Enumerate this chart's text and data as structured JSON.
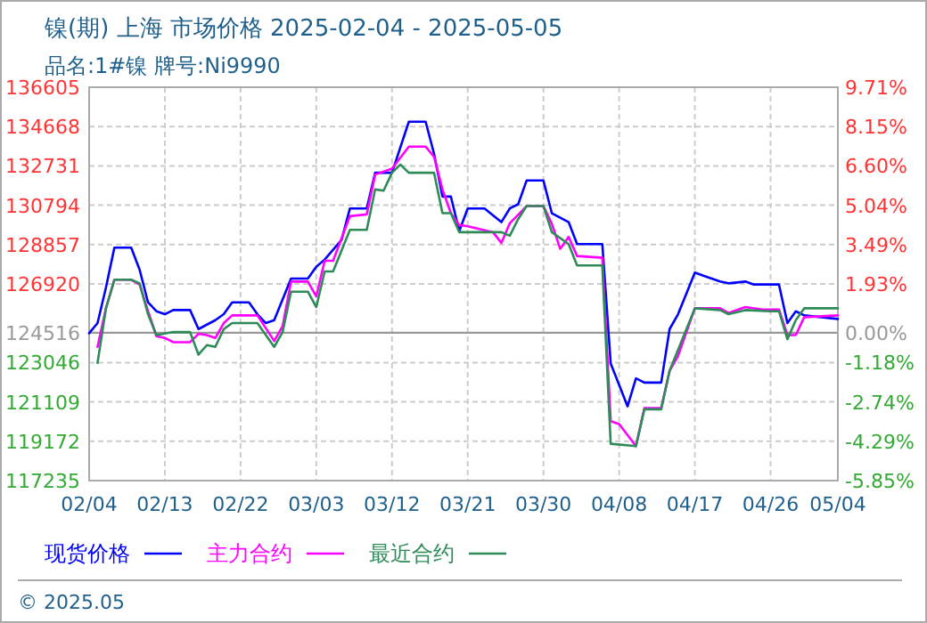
{
  "chart_data": {
    "type": "line",
    "title": "镍(期) 上海 市场价格 2025-02-04 - 2025-05-05",
    "subtitle": "品名:1#镍 牌号:Ni9990",
    "xlim": [
      "2025-02-04",
      "2025-05-04"
    ],
    "xticks": [
      {
        "value": "2025-02-04",
        "label": "02/04"
      },
      {
        "value": "2025-02-13",
        "label": "02/13"
      },
      {
        "value": "2025-02-22",
        "label": "02/22"
      },
      {
        "value": "2025-03-03",
        "label": "03/03"
      },
      {
        "value": "2025-03-12",
        "label": "03/12"
      },
      {
        "value": "2025-03-21",
        "label": "03/21"
      },
      {
        "value": "2025-03-30",
        "label": "03/30"
      },
      {
        "value": "2025-04-08",
        "label": "04/08"
      },
      {
        "value": "2025-04-17",
        "label": "04/17"
      },
      {
        "value": "2025-04-26",
        "label": "04/26"
      },
      {
        "value": "2025-05-04",
        "label": "05/04"
      }
    ],
    "ylim": [
      117235,
      136605
    ],
    "yticks": [
      117235,
      119172,
      121109,
      123046,
      126920,
      128857,
      130794,
      132731,
      134668,
      136605
    ],
    "y2lim": [
      -5.85,
      9.71
    ],
    "y2ticks": [
      {
        "value": -5.85,
        "label": "-5.85%"
      },
      {
        "value": -4.29,
        "label": "-4.29%"
      },
      {
        "value": -2.74,
        "label": "-2.74%"
      },
      {
        "value": -1.18,
        "label": "-1.18%"
      },
      {
        "value": 0,
        "label": "0.00%"
      },
      {
        "value": 1.93,
        "label": "1.93%"
      },
      {
        "value": 3.49,
        "label": "3.49%"
      },
      {
        "value": 5.04,
        "label": "5.04%"
      },
      {
        "value": 6.6,
        "label": "6.60%"
      },
      {
        "value": 8.15,
        "label": "8.15%"
      },
      {
        "value": 9.71,
        "label": "9.71%"
      }
    ],
    "ref_lines": [
      {
        "axis": "y",
        "value": 124516,
        "label": "124516",
        "color": "#999999"
      }
    ],
    "grid": true,
    "legend": "bottom",
    "line_style": "solid",
    "series": [
      {
        "name": "现货价格",
        "color": "#0000ff",
        "x": [
          "2025-02-04",
          "2025-02-05",
          "2025-02-06",
          "2025-02-07",
          "2025-02-09",
          "2025-02-10",
          "2025-02-11",
          "2025-02-12",
          "2025-02-13",
          "2025-02-14",
          "2025-02-16",
          "2025-02-17",
          "2025-02-19",
          "2025-02-20",
          "2025-02-21",
          "2025-02-23",
          "2025-02-24",
          "2025-02-25",
          "2025-02-26",
          "2025-02-28",
          "2025-03-02",
          "2025-03-03",
          "2025-03-04",
          "2025-03-06",
          "2025-03-07",
          "2025-03-09",
          "2025-03-10",
          "2025-03-12",
          "2025-03-14",
          "2025-03-16",
          "2025-03-17",
          "2025-03-18",
          "2025-03-19",
          "2025-03-20",
          "2025-03-21",
          "2025-03-23",
          "2025-03-25",
          "2025-03-26",
          "2025-03-27",
          "2025-03-28",
          "2025-03-30",
          "2025-03-31",
          "2025-04-02",
          "2025-04-03",
          "2025-04-06",
          "2025-04-07",
          "2025-04-09",
          "2025-04-10",
          "2025-04-11",
          "2025-04-13",
          "2025-04-14",
          "2025-04-15",
          "2025-04-16",
          "2025-04-17",
          "2025-04-18",
          "2025-04-20",
          "2025-04-21",
          "2025-04-23",
          "2025-04-24",
          "2025-04-27",
          "2025-04-28",
          "2025-04-29",
          "2025-04-30",
          "2025-05-04"
        ],
        "values": [
          124491,
          124990,
          126745,
          128705,
          128705,
          127622,
          126013,
          125574,
          125428,
          125633,
          125633,
          124696,
          125135,
          125428,
          126013,
          126013,
          125428,
          124990,
          125135,
          127183,
          127183,
          127768,
          128120,
          129085,
          130636,
          130636,
          132392,
          132392,
          134908,
          134908,
          133328,
          131221,
          131221,
          129524,
          130636,
          130636,
          129963,
          130636,
          130841,
          132011,
          132011,
          130402,
          129963,
          128880,
          128880,
          123000,
          120891,
          122267,
          122062,
          122062,
          124696,
          125428,
          126452,
          127476,
          127329,
          127037,
          126949,
          127037,
          126891,
          126891,
          124990,
          125574,
          125369,
          125194
        ]
      },
      {
        "name": "主力合约",
        "color": "#ff00ff",
        "x": [
          "2025-02-05",
          "2025-02-06",
          "2025-02-07",
          "2025-02-09",
          "2025-02-10",
          "2025-02-11",
          "2025-02-12",
          "2025-02-13",
          "2025-02-14",
          "2025-02-16",
          "2025-02-17",
          "2025-02-18",
          "2025-02-19",
          "2025-02-20",
          "2025-02-21",
          "2025-02-24",
          "2025-02-26",
          "2025-02-27",
          "2025-02-28",
          "2025-03-02",
          "2025-03-03",
          "2025-03-04",
          "2025-03-05",
          "2025-03-07",
          "2025-03-09",
          "2025-03-10",
          "2025-03-12",
          "2025-03-14",
          "2025-03-16",
          "2025-03-17",
          "2025-03-18",
          "2025-03-19",
          "2025-03-20",
          "2025-03-21",
          "2025-03-24",
          "2025-03-25",
          "2025-03-26",
          "2025-03-28",
          "2025-03-30",
          "2025-03-31",
          "2025-04-01",
          "2025-04-02",
          "2025-04-03",
          "2025-04-06",
          "2025-04-07",
          "2025-04-08",
          "2025-04-10",
          "2025-04-11",
          "2025-04-13",
          "2025-04-14",
          "2025-04-15",
          "2025-04-17",
          "2025-04-20",
          "2025-04-21",
          "2025-04-23",
          "2025-04-25",
          "2025-04-27",
          "2025-04-28",
          "2025-04-29",
          "2025-04-30",
          "2025-05-04"
        ],
        "values": [
          123819,
          125720,
          127125,
          127125,
          126891,
          125574,
          124345,
          124257,
          124052,
          124052,
          124462,
          124403,
          124257,
          124990,
          125369,
          125369,
          124111,
          124843,
          127037,
          127037,
          126305,
          128061,
          128061,
          130256,
          130344,
          132304,
          132596,
          133679,
          133679,
          133181,
          131572,
          130402,
          129817,
          129758,
          129466,
          128939,
          129905,
          130753,
          130753,
          129875,
          128646,
          129232,
          128295,
          128207,
          120160,
          120014,
          118931,
          120804,
          120804,
          122647,
          123379,
          125720,
          125720,
          125486,
          125779,
          125662,
          125662,
          124403,
          124403,
          125281,
          125369
        ]
      },
      {
        "name": "最近合约",
        "color": "#2e8b57",
        "x": [
          "2025-02-05",
          "2025-02-06",
          "2025-02-07",
          "2025-02-09",
          "2025-02-10",
          "2025-02-11",
          "2025-02-12",
          "2025-02-14",
          "2025-02-16",
          "2025-02-17",
          "2025-02-18",
          "2025-02-19",
          "2025-02-20",
          "2025-02-21",
          "2025-02-24",
          "2025-02-26",
          "2025-02-27",
          "2025-02-28",
          "2025-03-02",
          "2025-03-03",
          "2025-03-04",
          "2025-03-05",
          "2025-03-07",
          "2025-03-09",
          "2025-03-10",
          "2025-03-11",
          "2025-03-12",
          "2025-03-13",
          "2025-03-14",
          "2025-03-17",
          "2025-03-18",
          "2025-03-19",
          "2025-03-20",
          "2025-03-25",
          "2025-03-26",
          "2025-03-27",
          "2025-03-28",
          "2025-03-30",
          "2025-03-31",
          "2025-04-02",
          "2025-04-03",
          "2025-04-06",
          "2025-04-07",
          "2025-04-10",
          "2025-04-11",
          "2025-04-13",
          "2025-04-14",
          "2025-04-16",
          "2025-04-17",
          "2025-04-20",
          "2025-04-21",
          "2025-04-23",
          "2025-04-26",
          "2025-04-27",
          "2025-04-28",
          "2025-04-29",
          "2025-04-30",
          "2025-05-04"
        ],
        "values": [
          123029,
          125720,
          127125,
          127125,
          126949,
          125428,
          124403,
          124550,
          124550,
          123438,
          123907,
          123819,
          124696,
          124990,
          124990,
          123819,
          124550,
          126540,
          126540,
          125779,
          127534,
          127534,
          129583,
          129583,
          131572,
          131514,
          132392,
          132801,
          132392,
          132392,
          130402,
          130402,
          129466,
          129466,
          129290,
          130110,
          130753,
          130753,
          129466,
          128880,
          127827,
          127827,
          119048,
          118931,
          120745,
          120745,
          122647,
          124696,
          125720,
          125632,
          125428,
          125632,
          125574,
          125574,
          124198,
          125135,
          125720,
          125720
        ]
      }
    ],
    "annotations": [
      "© 2025.05"
    ]
  }
}
